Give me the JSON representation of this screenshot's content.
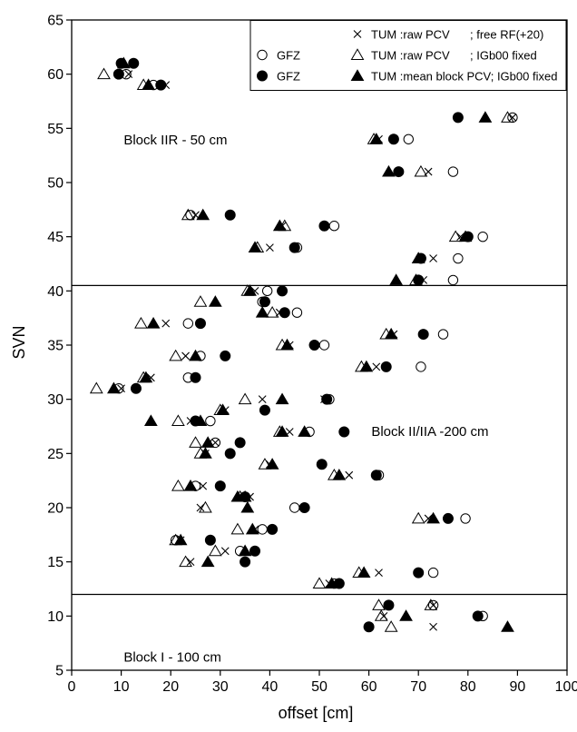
{
  "chart_data": {
    "type": "scatter",
    "xlabel": "offset [cm]",
    "ylabel": "SVN",
    "xlim": [
      0,
      100
    ],
    "ylim": [
      5,
      65
    ],
    "xticks": [
      0,
      10,
      20,
      30,
      40,
      50,
      60,
      70,
      80,
      90,
      100
    ],
    "yticks": [
      5,
      10,
      15,
      20,
      25,
      30,
      35,
      40,
      45,
      50,
      55,
      60,
      65
    ],
    "separators": [
      12,
      40.5
    ],
    "annotations": [
      {
        "text": "Block IIR - 50 cm",
        "x": 10.5,
        "y": 53.5
      },
      {
        "text": "Block II/IIA -200 cm",
        "x": 60.5,
        "y": 26.6
      },
      {
        "text": "Block I - 100 cm",
        "x": 10.5,
        "y": 5.8
      }
    ],
    "legend": {
      "placement": "top-right",
      "rows": [
        {
          "left_marker": "",
          "left_label": "",
          "right_marker": "x",
          "right_label": "TUM :raw PCV",
          "note": "; free RF(+20)"
        },
        {
          "left_marker": "open-circle",
          "left_label": "GFZ",
          "right_marker": "open-triangle",
          "right_label": "TUM :raw PCV",
          "note": "; IGb00 fixed"
        },
        {
          "left_marker": "filled-circle",
          "left_label": "GFZ",
          "right_marker": "filled-triangle",
          "right_label": "TUM :mean block PCV; IGb00 fixed",
          "note": ""
        }
      ]
    },
    "series": [
      {
        "name": "GFZ",
        "marker": "open-circle",
        "points": [
          [
            11,
            60
          ],
          [
            16.5,
            59
          ],
          [
            89,
            56
          ],
          [
            68,
            54
          ],
          [
            77,
            51
          ],
          [
            53,
            46
          ],
          [
            83,
            45
          ],
          [
            45.5,
            44
          ],
          [
            78,
            43
          ],
          [
            77,
            41
          ],
          [
            24,
            47
          ],
          [
            39.5,
            40
          ],
          [
            38.5,
            39
          ],
          [
            45.5,
            38
          ],
          [
            23.5,
            37
          ],
          [
            75,
            36
          ],
          [
            26,
            34
          ],
          [
            51,
            35
          ],
          [
            70.5,
            33
          ],
          [
            23.5,
            32
          ],
          [
            9.5,
            31
          ],
          [
            52,
            30
          ],
          [
            28,
            28
          ],
          [
            48,
            27
          ],
          [
            29,
            26
          ],
          [
            25,
            22
          ],
          [
            62,
            23
          ],
          [
            45,
            20
          ],
          [
            79.5,
            19
          ],
          [
            38.5,
            18
          ],
          [
            21,
            17
          ],
          [
            34,
            16
          ],
          [
            73,
            14
          ],
          [
            53,
            13
          ],
          [
            83,
            10
          ],
          [
            73,
            11
          ]
        ]
      },
      {
        "name": "GFZ",
        "marker": "filled-circle",
        "points": [
          [
            10,
            61
          ],
          [
            12.5,
            61
          ],
          [
            9.5,
            60
          ],
          [
            18,
            59
          ],
          [
            78,
            56
          ],
          [
            65,
            54
          ],
          [
            66,
            51
          ],
          [
            51,
            46
          ],
          [
            32,
            47
          ],
          [
            80,
            45
          ],
          [
            45,
            44
          ],
          [
            70.5,
            43
          ],
          [
            70,
            41
          ],
          [
            42.5,
            40
          ],
          [
            39,
            39
          ],
          [
            43,
            38
          ],
          [
            26,
            37
          ],
          [
            71,
            36
          ],
          [
            31,
            34
          ],
          [
            49,
            35
          ],
          [
            63.5,
            33
          ],
          [
            25,
            32
          ],
          [
            13,
            31
          ],
          [
            51.5,
            30
          ],
          [
            25,
            28
          ],
          [
            39,
            29
          ],
          [
            55,
            27
          ],
          [
            34,
            26
          ],
          [
            32,
            25
          ],
          [
            30,
            22
          ],
          [
            61.5,
            23
          ],
          [
            50.5,
            24
          ],
          [
            35,
            21
          ],
          [
            47,
            20
          ],
          [
            76,
            19
          ],
          [
            40.5,
            18
          ],
          [
            28,
            17
          ],
          [
            37,
            16
          ],
          [
            35,
            15
          ],
          [
            70,
            14
          ],
          [
            54,
            13
          ],
          [
            64,
            11
          ],
          [
            60,
            9
          ],
          [
            82,
            10
          ]
        ]
      },
      {
        "name": "TUM :raw PCV",
        "marker": "x",
        "points": [
          [
            11.5,
            60
          ],
          [
            19,
            59
          ],
          [
            89,
            56
          ],
          [
            62,
            54
          ],
          [
            72,
            51
          ],
          [
            42.5,
            46
          ],
          [
            78.5,
            45
          ],
          [
            40,
            44
          ],
          [
            73,
            43
          ],
          [
            71,
            41
          ],
          [
            25,
            47
          ],
          [
            37,
            40
          ],
          [
            42,
            38
          ],
          [
            19,
            37
          ],
          [
            65,
            36
          ],
          [
            23,
            34
          ],
          [
            44,
            35
          ],
          [
            61.5,
            33
          ],
          [
            16,
            32
          ],
          [
            10,
            31
          ],
          [
            51,
            30
          ],
          [
            38.5,
            30
          ],
          [
            31,
            29
          ],
          [
            24,
            28
          ],
          [
            44,
            27
          ],
          [
            29,
            26
          ],
          [
            27,
            25
          ],
          [
            40,
            24
          ],
          [
            56,
            23
          ],
          [
            26.5,
            22
          ],
          [
            36,
            21
          ],
          [
            26,
            20
          ],
          [
            72,
            19
          ],
          [
            37,
            18
          ],
          [
            22,
            17
          ],
          [
            31,
            16
          ],
          [
            24,
            15
          ],
          [
            62,
            14
          ],
          [
            52,
            13
          ],
          [
            63,
            10
          ],
          [
            73,
            9
          ],
          [
            73,
            11
          ]
        ]
      },
      {
        "name": "TUM :raw PCV",
        "marker": "open-triangle",
        "points": [
          [
            6.5,
            60
          ],
          [
            14.5,
            59
          ],
          [
            88,
            56
          ],
          [
            61,
            54
          ],
          [
            70.5,
            51
          ],
          [
            23.5,
            47
          ],
          [
            43,
            46
          ],
          [
            77.5,
            45
          ],
          [
            37.5,
            44
          ],
          [
            70,
            43
          ],
          [
            69.5,
            41
          ],
          [
            35.5,
            40
          ],
          [
            26,
            39
          ],
          [
            40.5,
            38
          ],
          [
            14,
            37
          ],
          [
            63.5,
            36
          ],
          [
            21,
            34
          ],
          [
            42.5,
            35
          ],
          [
            58.5,
            33
          ],
          [
            14.5,
            32
          ],
          [
            5,
            31
          ],
          [
            35,
            30
          ],
          [
            30,
            29
          ],
          [
            21.5,
            28
          ],
          [
            42,
            27
          ],
          [
            25,
            26
          ],
          [
            26,
            25
          ],
          [
            39,
            24
          ],
          [
            53,
            23
          ],
          [
            21.5,
            22
          ],
          [
            34,
            21
          ],
          [
            27,
            20
          ],
          [
            70,
            19
          ],
          [
            33.5,
            18
          ],
          [
            21,
            17
          ],
          [
            29,
            16
          ],
          [
            23,
            15
          ],
          [
            58,
            14
          ],
          [
            50,
            13
          ],
          [
            62,
            11
          ],
          [
            62.5,
            10
          ],
          [
            64.5,
            9
          ],
          [
            72.5,
            11
          ]
        ]
      },
      {
        "name": "TUM :mean block PCV; IGb00 fixed",
        "marker": "filled-triangle",
        "points": [
          [
            10.5,
            61
          ],
          [
            15.5,
            59
          ],
          [
            83.5,
            56
          ],
          [
            61.5,
            54
          ],
          [
            64,
            51
          ],
          [
            26.5,
            47
          ],
          [
            42,
            46
          ],
          [
            79.5,
            45
          ],
          [
            37,
            44
          ],
          [
            70,
            43
          ],
          [
            65.5,
            41
          ],
          [
            36,
            40
          ],
          [
            29,
            39
          ],
          [
            38.5,
            38
          ],
          [
            16.5,
            37
          ],
          [
            64.5,
            36
          ],
          [
            25,
            34
          ],
          [
            43.5,
            35
          ],
          [
            59.5,
            33
          ],
          [
            15,
            32
          ],
          [
            8.5,
            31
          ],
          [
            42.5,
            30
          ],
          [
            16,
            28
          ],
          [
            30.5,
            29
          ],
          [
            26,
            28
          ],
          [
            42.5,
            27
          ],
          [
            47,
            27
          ],
          [
            27.5,
            26
          ],
          [
            27,
            25
          ],
          [
            40.5,
            24
          ],
          [
            54,
            23
          ],
          [
            24,
            22
          ],
          [
            35,
            21
          ],
          [
            33.5,
            21
          ],
          [
            35.5,
            20
          ],
          [
            73,
            19
          ],
          [
            36.5,
            18
          ],
          [
            22,
            17
          ],
          [
            35,
            16
          ],
          [
            27.5,
            15
          ],
          [
            59,
            14
          ],
          [
            52.5,
            13
          ],
          [
            67.5,
            10
          ],
          [
            88,
            9
          ]
        ]
      }
    ]
  }
}
